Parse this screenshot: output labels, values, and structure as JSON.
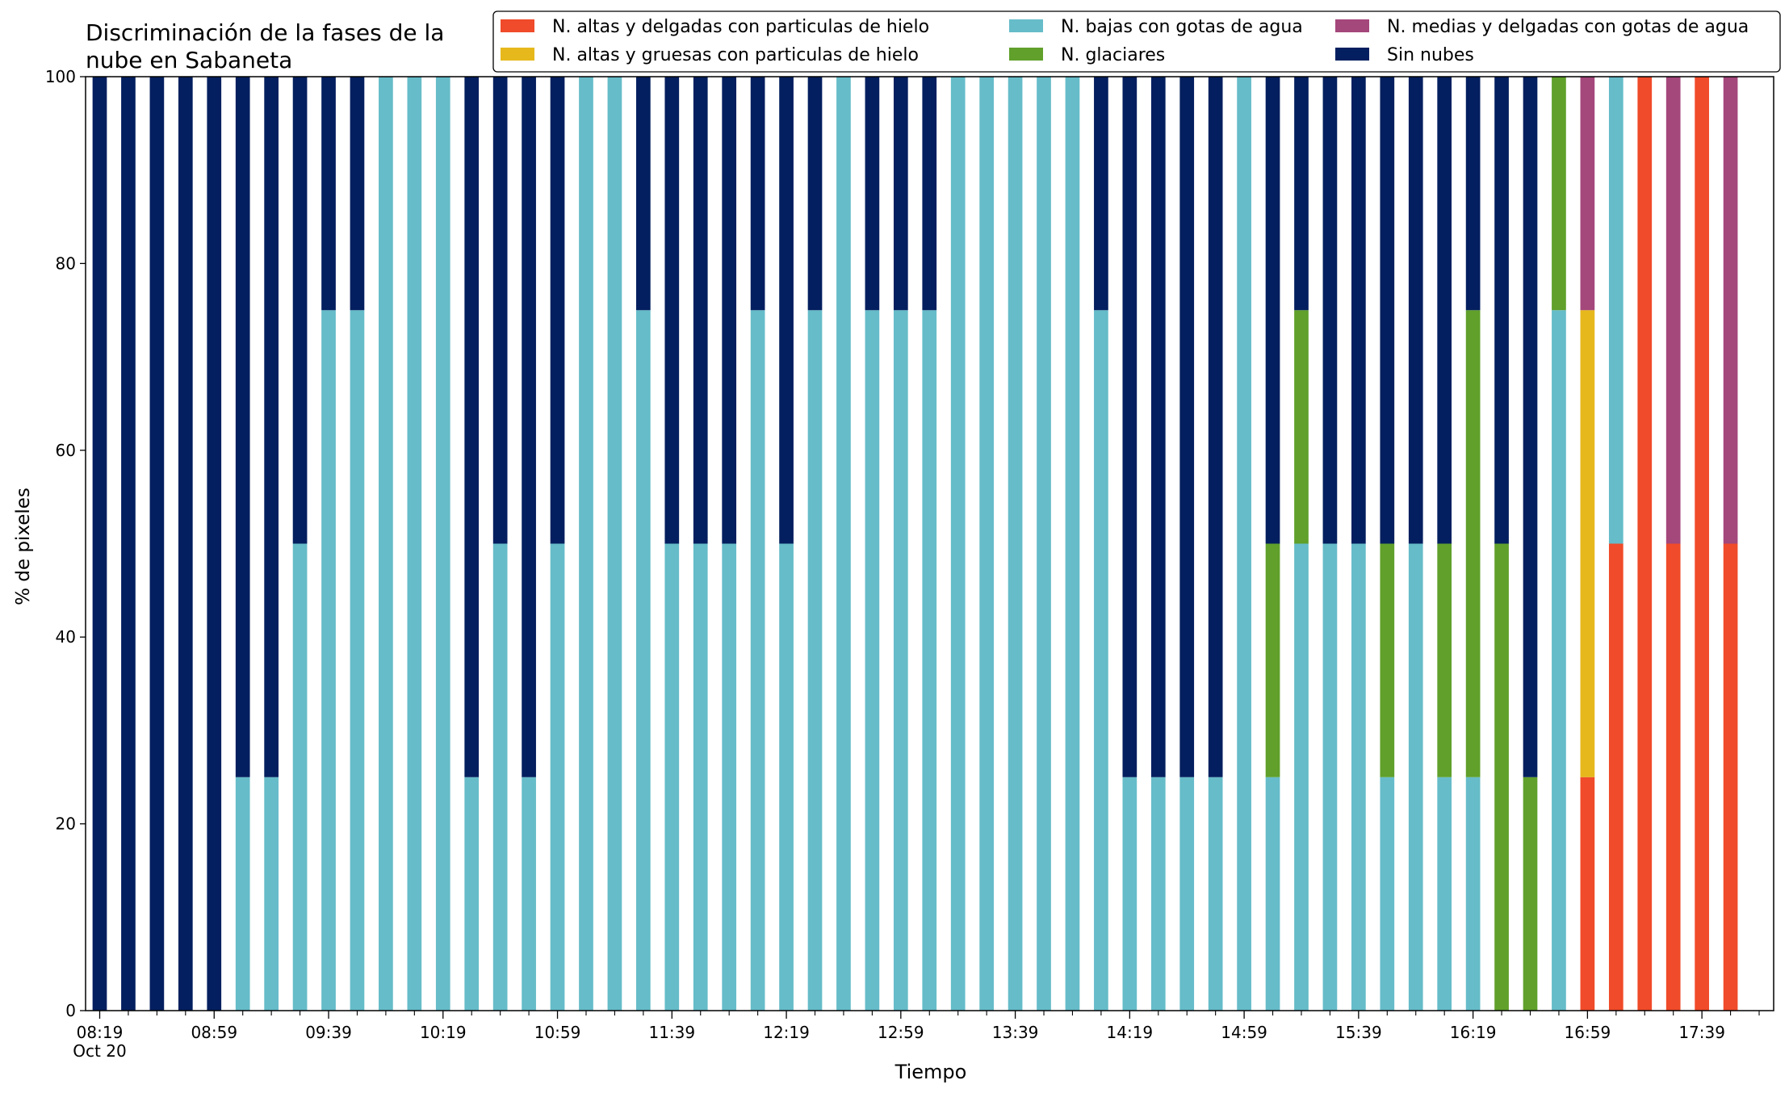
{
  "chart_data": {
    "type": "bar",
    "stacked": true,
    "title_lines": [
      "Discriminación de la fases de la",
      "nube en Sabaneta"
    ],
    "xlabel": "Tiempo",
    "ylabel": "% de pixeles",
    "ylim": [
      0,
      100
    ],
    "yticks": [
      0,
      20,
      40,
      60,
      80,
      100
    ],
    "xtick_labels": [
      "08:19",
      "08:59",
      "09:39",
      "10:19",
      "10:59",
      "11:39",
      "12:19",
      "12:59",
      "13:39",
      "14:19",
      "14:59",
      "15:39",
      "16:19",
      "16:59",
      "17:39"
    ],
    "xtick_sublabel": "Oct 20",
    "legend_position": "top-right",
    "grid": false,
    "series": [
      {
        "key": "altas_delgadas",
        "name": "N. altas y delgadas con particulas de hielo",
        "color": "#f04b2a"
      },
      {
        "key": "altas_gruesas",
        "name": "N. altas y gruesas con particulas de hielo",
        "color": "#e6b81b"
      },
      {
        "key": "bajas_agua",
        "name": "N. bajas con gotas de agua",
        "color": "#66bcc9"
      },
      {
        "key": "glaciares",
        "name": "N. glaciares",
        "color": "#60a02b"
      },
      {
        "key": "medias_delgadas",
        "name": "N. medias y delgadas con gotas de agua",
        "color": "#a4477b"
      },
      {
        "key": "sin_nubes",
        "name": "Sin nubes",
        "color": "#041f5f"
      }
    ],
    "stack_order": [
      "altas_delgadas",
      "altas_gruesas",
      "bajas_agua",
      "glaciares",
      "medias_delgadas",
      "sin_nubes"
    ],
    "legend_order": [
      "altas_delgadas",
      "altas_gruesas",
      "bajas_agua",
      "glaciares",
      "medias_delgadas",
      "sin_nubes"
    ],
    "bars": [
      [
        0,
        0,
        0,
        0,
        0,
        100
      ],
      [
        0,
        0,
        0,
        0,
        0,
        100
      ],
      [
        0,
        0,
        0,
        0,
        0,
        100
      ],
      [
        0,
        0,
        0,
        0,
        0,
        100
      ],
      [
        0,
        0,
        0,
        0,
        0,
        100
      ],
      [
        0,
        0,
        25,
        0,
        0,
        75
      ],
      [
        0,
        0,
        25,
        0,
        0,
        75
      ],
      [
        0,
        0,
        50,
        0,
        0,
        50
      ],
      [
        0,
        0,
        75,
        0,
        0,
        25
      ],
      [
        0,
        0,
        75,
        0,
        0,
        25
      ],
      [
        0,
        0,
        100,
        0,
        0,
        0
      ],
      [
        0,
        0,
        100,
        0,
        0,
        0
      ],
      [
        0,
        0,
        100,
        0,
        0,
        0
      ],
      [
        0,
        0,
        25,
        0,
        0,
        75
      ],
      [
        0,
        0,
        50,
        0,
        0,
        50
      ],
      [
        0,
        0,
        25,
        0,
        0,
        75
      ],
      [
        0,
        0,
        50,
        0,
        0,
        50
      ],
      [
        0,
        0,
        100,
        0,
        0,
        0
      ],
      [
        0,
        0,
        100,
        0,
        0,
        0
      ],
      [
        0,
        0,
        75,
        0,
        0,
        25
      ],
      [
        0,
        0,
        50,
        0,
        0,
        50
      ],
      [
        0,
        0,
        50,
        0,
        0,
        50
      ],
      [
        0,
        0,
        50,
        0,
        0,
        50
      ],
      [
        0,
        0,
        75,
        0,
        0,
        25
      ],
      [
        0,
        0,
        50,
        0,
        0,
        50
      ],
      [
        0,
        0,
        75,
        0,
        0,
        25
      ],
      [
        0,
        0,
        100,
        0,
        0,
        0
      ],
      [
        0,
        0,
        75,
        0,
        0,
        25
      ],
      [
        0,
        0,
        75,
        0,
        0,
        25
      ],
      [
        0,
        0,
        75,
        0,
        0,
        25
      ],
      [
        0,
        0,
        100,
        0,
        0,
        0
      ],
      [
        0,
        0,
        100,
        0,
        0,
        0
      ],
      [
        0,
        0,
        100,
        0,
        0,
        0
      ],
      [
        0,
        0,
        100,
        0,
        0,
        0
      ],
      [
        0,
        0,
        100,
        0,
        0,
        0
      ],
      [
        0,
        0,
        75,
        0,
        0,
        25
      ],
      [
        0,
        0,
        25,
        0,
        0,
        75
      ],
      [
        0,
        0,
        25,
        0,
        0,
        75
      ],
      [
        0,
        0,
        25,
        0,
        0,
        75
      ],
      [
        0,
        0,
        25,
        0,
        0,
        75
      ],
      [
        0,
        0,
        100,
        0,
        0,
        0
      ],
      [
        0,
        0,
        25,
        25,
        0,
        50
      ],
      [
        0,
        0,
        50,
        25,
        0,
        25
      ],
      [
        0,
        0,
        50,
        0,
        0,
        50
      ],
      [
        0,
        0,
        50,
        0,
        0,
        50
      ],
      [
        0,
        0,
        25,
        25,
        0,
        50
      ],
      [
        0,
        0,
        50,
        0,
        0,
        50
      ],
      [
        0,
        0,
        25,
        25,
        0,
        50
      ],
      [
        0,
        0,
        25,
        50,
        0,
        25
      ],
      [
        0,
        0,
        0,
        50,
        0,
        50
      ],
      [
        0,
        0,
        0,
        25,
        0,
        75
      ],
      [
        0,
        0,
        75,
        25,
        0,
        0
      ],
      [
        25,
        50,
        0,
        0,
        25,
        0
      ],
      [
        50,
        0,
        50,
        0,
        0,
        0
      ],
      [
        100,
        0,
        0,
        0,
        0,
        0
      ],
      [
        50,
        0,
        0,
        0,
        50,
        0
      ],
      [
        100,
        0,
        0,
        0,
        0,
        0
      ],
      [
        50,
        0,
        0,
        0,
        50,
        0
      ]
    ]
  }
}
